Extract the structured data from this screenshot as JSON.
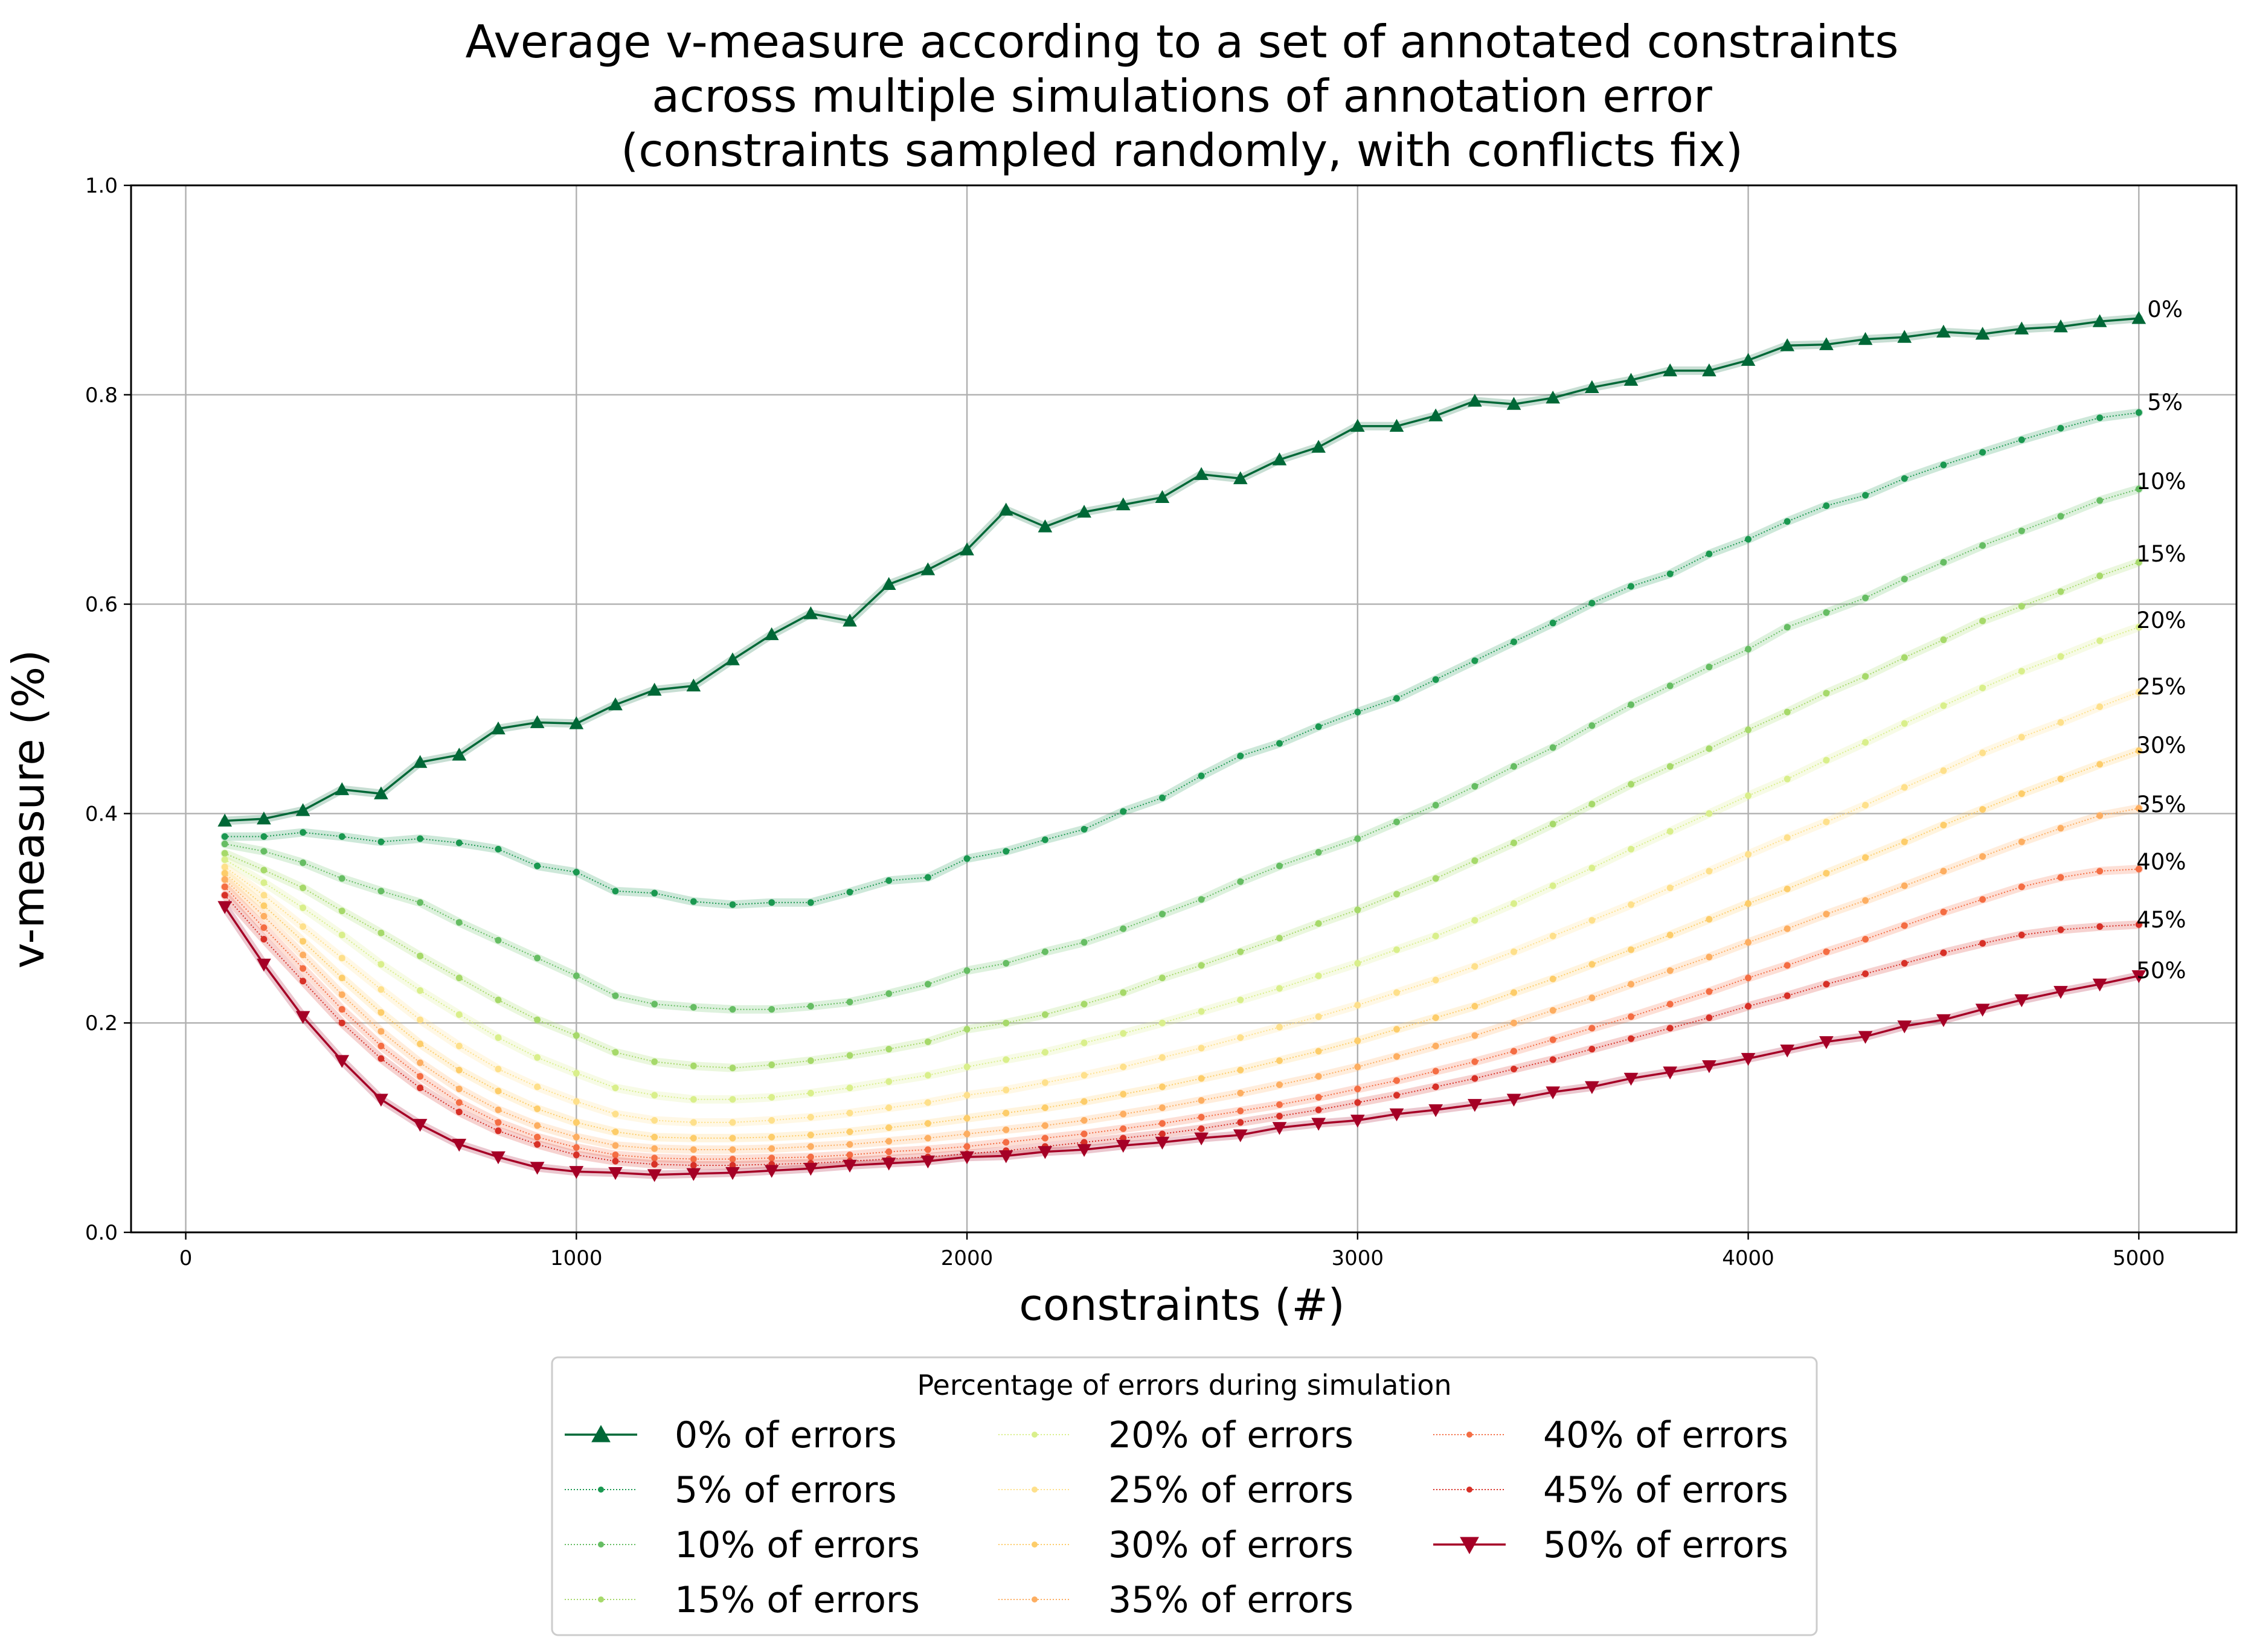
{
  "chart_data": {
    "type": "line",
    "title_lines": [
      "Average v-measure according to a set of annotated constraints",
      "across multiple simulations of annotation error",
      "(constraints sampled randomly, with conflicts fix)"
    ],
    "xlabel": "constraints (#)",
    "ylabel": "v-measure (%)",
    "xlim": [
      -140,
      5250
    ],
    "ylim": [
      0,
      1
    ],
    "xticks": [
      0,
      1000,
      2000,
      3000,
      4000,
      5000
    ],
    "yticks": [
      0.0,
      0.2,
      0.4,
      0.6,
      0.8,
      1.0
    ],
    "grid": true,
    "legend": {
      "title": "Percentage of errors during simulation",
      "placement": "below the plot, centered",
      "columns": 3
    },
    "x": [
      100,
      200,
      300,
      400,
      500,
      600,
      700,
      800,
      900,
      1000,
      1100,
      1200,
      1300,
      1400,
      1500,
      1600,
      1700,
      1800,
      1900,
      2000,
      2100,
      2200,
      2300,
      2400,
      2500,
      2600,
      2700,
      2800,
      2900,
      3000,
      3100,
      3200,
      3300,
      3400,
      3500,
      3600,
      3700,
      3800,
      3900,
      4000,
      4100,
      4200,
      4300,
      4400,
      4500,
      4600,
      4700,
      4800,
      4900,
      5000
    ],
    "series": [
      {
        "name": "0% of errors",
        "end_label": "0%",
        "color": "#006837",
        "marker": "triangle-up",
        "style": "solid",
        "values": [
          0.393,
          0.395,
          0.403,
          0.423,
          0.419,
          0.449,
          0.456,
          0.481,
          0.487,
          0.486,
          0.504,
          0.518,
          0.522,
          0.547,
          0.571,
          0.591,
          0.584,
          0.619,
          0.633,
          0.652,
          0.69,
          0.674,
          0.688,
          0.695,
          0.702,
          0.724,
          0.72,
          0.738,
          0.75,
          0.77,
          0.77,
          0.78,
          0.794,
          0.791,
          0.797,
          0.807,
          0.814,
          0.823,
          0.823,
          0.833,
          0.847,
          0.848,
          0.853,
          0.855,
          0.86,
          0.858,
          0.863,
          0.865,
          0.87,
          0.873
        ]
      },
      {
        "name": "5% of errors",
        "end_label": "5%",
        "color": "#1a9850",
        "marker": "dot",
        "style": "dotted",
        "values": [
          0.378,
          0.378,
          0.382,
          0.378,
          0.373,
          0.376,
          0.372,
          0.366,
          0.35,
          0.344,
          0.326,
          0.324,
          0.316,
          0.313,
          0.315,
          0.315,
          0.325,
          0.336,
          0.339,
          0.357,
          0.364,
          0.375,
          0.385,
          0.402,
          0.415,
          0.436,
          0.455,
          0.467,
          0.483,
          0.497,
          0.51,
          0.528,
          0.546,
          0.564,
          0.582,
          0.601,
          0.617,
          0.629,
          0.648,
          0.662,
          0.679,
          0.694,
          0.704,
          0.72,
          0.733,
          0.745,
          0.757,
          0.768,
          0.778,
          0.783
        ]
      },
      {
        "name": "10% of errors",
        "end_label": "10%",
        "color": "#66bd63",
        "marker": "dot",
        "style": "dotted",
        "values": [
          0.371,
          0.364,
          0.353,
          0.338,
          0.326,
          0.315,
          0.296,
          0.279,
          0.262,
          0.245,
          0.226,
          0.218,
          0.215,
          0.213,
          0.213,
          0.216,
          0.22,
          0.228,
          0.237,
          0.25,
          0.257,
          0.268,
          0.277,
          0.29,
          0.304,
          0.318,
          0.335,
          0.35,
          0.363,
          0.376,
          0.392,
          0.408,
          0.426,
          0.445,
          0.463,
          0.484,
          0.504,
          0.522,
          0.54,
          0.557,
          0.578,
          0.592,
          0.606,
          0.624,
          0.64,
          0.656,
          0.67,
          0.684,
          0.699,
          0.71
        ]
      },
      {
        "name": "15% of errors",
        "end_label": "15%",
        "color": "#a6d96a",
        "marker": "dot",
        "style": "dotted",
        "values": [
          0.362,
          0.346,
          0.329,
          0.307,
          0.286,
          0.264,
          0.243,
          0.222,
          0.203,
          0.188,
          0.172,
          0.163,
          0.159,
          0.157,
          0.16,
          0.164,
          0.169,
          0.175,
          0.182,
          0.194,
          0.2,
          0.208,
          0.218,
          0.229,
          0.243,
          0.255,
          0.268,
          0.281,
          0.295,
          0.308,
          0.323,
          0.338,
          0.355,
          0.372,
          0.39,
          0.409,
          0.428,
          0.445,
          0.462,
          0.48,
          0.497,
          0.515,
          0.531,
          0.549,
          0.566,
          0.584,
          0.598,
          0.612,
          0.627,
          0.64
        ]
      },
      {
        "name": "20% of errors",
        "end_label": "20%",
        "color": "#d9ef8b",
        "marker": "dot",
        "style": "dotted",
        "values": [
          0.356,
          0.334,
          0.31,
          0.284,
          0.256,
          0.231,
          0.208,
          0.186,
          0.167,
          0.152,
          0.138,
          0.131,
          0.127,
          0.127,
          0.129,
          0.133,
          0.138,
          0.144,
          0.15,
          0.158,
          0.165,
          0.172,
          0.181,
          0.19,
          0.2,
          0.211,
          0.222,
          0.233,
          0.245,
          0.257,
          0.27,
          0.283,
          0.298,
          0.314,
          0.331,
          0.348,
          0.366,
          0.383,
          0.4,
          0.417,
          0.433,
          0.451,
          0.468,
          0.486,
          0.503,
          0.52,
          0.536,
          0.55,
          0.565,
          0.578
        ]
      },
      {
        "name": "25% of errors",
        "end_label": "25%",
        "color": "#fee08b",
        "marker": "dot",
        "style": "dotted",
        "values": [
          0.349,
          0.322,
          0.292,
          0.262,
          0.232,
          0.203,
          0.178,
          0.156,
          0.139,
          0.125,
          0.113,
          0.107,
          0.105,
          0.105,
          0.107,
          0.11,
          0.114,
          0.119,
          0.124,
          0.131,
          0.136,
          0.143,
          0.15,
          0.158,
          0.167,
          0.176,
          0.186,
          0.196,
          0.206,
          0.217,
          0.229,
          0.241,
          0.254,
          0.268,
          0.283,
          0.298,
          0.313,
          0.329,
          0.345,
          0.361,
          0.377,
          0.392,
          0.408,
          0.425,
          0.441,
          0.458,
          0.473,
          0.487,
          0.502,
          0.516
        ]
      },
      {
        "name": "30% of errors",
        "end_label": "30%",
        "color": "#fdcd6a",
        "marker": "dot",
        "style": "dotted",
        "values": [
          0.343,
          0.312,
          0.278,
          0.243,
          0.21,
          0.18,
          0.155,
          0.135,
          0.118,
          0.105,
          0.096,
          0.091,
          0.09,
          0.09,
          0.091,
          0.093,
          0.096,
          0.1,
          0.104,
          0.109,
          0.114,
          0.119,
          0.125,
          0.132,
          0.139,
          0.147,
          0.155,
          0.164,
          0.173,
          0.183,
          0.194,
          0.205,
          0.216,
          0.229,
          0.242,
          0.256,
          0.27,
          0.284,
          0.299,
          0.314,
          0.328,
          0.343,
          0.358,
          0.373,
          0.389,
          0.404,
          0.419,
          0.433,
          0.447,
          0.46
        ]
      },
      {
        "name": "35% of errors",
        "end_label": "35%",
        "color": "#fdae61",
        "marker": "dot",
        "style": "dotted",
        "values": [
          0.337,
          0.302,
          0.265,
          0.227,
          0.192,
          0.162,
          0.137,
          0.117,
          0.102,
          0.091,
          0.083,
          0.08,
          0.079,
          0.079,
          0.08,
          0.082,
          0.084,
          0.087,
          0.09,
          0.094,
          0.098,
          0.102,
          0.107,
          0.113,
          0.119,
          0.126,
          0.133,
          0.141,
          0.149,
          0.158,
          0.168,
          0.178,
          0.188,
          0.2,
          0.212,
          0.224,
          0.237,
          0.25,
          0.263,
          0.277,
          0.29,
          0.304,
          0.317,
          0.331,
          0.345,
          0.359,
          0.373,
          0.386,
          0.398,
          0.405
        ]
      },
      {
        "name": "40% of errors",
        "end_label": "40%",
        "color": "#f46d43",
        "marker": "dot",
        "style": "dotted",
        "values": [
          0.33,
          0.291,
          0.252,
          0.213,
          0.178,
          0.149,
          0.124,
          0.105,
          0.091,
          0.081,
          0.074,
          0.071,
          0.07,
          0.07,
          0.071,
          0.072,
          0.074,
          0.077,
          0.079,
          0.082,
          0.086,
          0.09,
          0.094,
          0.099,
          0.104,
          0.11,
          0.116,
          0.122,
          0.129,
          0.137,
          0.145,
          0.154,
          0.163,
          0.173,
          0.184,
          0.195,
          0.206,
          0.218,
          0.23,
          0.243,
          0.255,
          0.268,
          0.28,
          0.293,
          0.306,
          0.318,
          0.33,
          0.339,
          0.345,
          0.347
        ]
      },
      {
        "name": "45% of errors",
        "end_label": "45%",
        "color": "#d73027",
        "marker": "dot",
        "style": "dotted",
        "values": [
          0.322,
          0.28,
          0.24,
          0.2,
          0.166,
          0.138,
          0.115,
          0.097,
          0.084,
          0.074,
          0.068,
          0.065,
          0.064,
          0.064,
          0.065,
          0.066,
          0.068,
          0.07,
          0.072,
          0.075,
          0.078,
          0.082,
          0.086,
          0.09,
          0.094,
          0.099,
          0.105,
          0.111,
          0.117,
          0.124,
          0.131,
          0.139,
          0.147,
          0.156,
          0.165,
          0.175,
          0.185,
          0.195,
          0.205,
          0.216,
          0.226,
          0.237,
          0.247,
          0.257,
          0.267,
          0.276,
          0.284,
          0.289,
          0.292,
          0.294
        ]
      },
      {
        "name": "50% of errors",
        "end_label": "50%",
        "color": "#a50026",
        "marker": "triangle-down",
        "style": "solid",
        "values": [
          0.311,
          0.256,
          0.206,
          0.164,
          0.127,
          0.103,
          0.084,
          0.072,
          0.062,
          0.058,
          0.057,
          0.055,
          0.056,
          0.057,
          0.059,
          0.061,
          0.064,
          0.066,
          0.068,
          0.072,
          0.073,
          0.077,
          0.079,
          0.083,
          0.086,
          0.09,
          0.093,
          0.1,
          0.104,
          0.107,
          0.113,
          0.117,
          0.122,
          0.127,
          0.134,
          0.139,
          0.147,
          0.153,
          0.159,
          0.166,
          0.174,
          0.182,
          0.187,
          0.197,
          0.203,
          0.213,
          0.222,
          0.23,
          0.237,
          0.245
        ]
      }
    ]
  }
}
